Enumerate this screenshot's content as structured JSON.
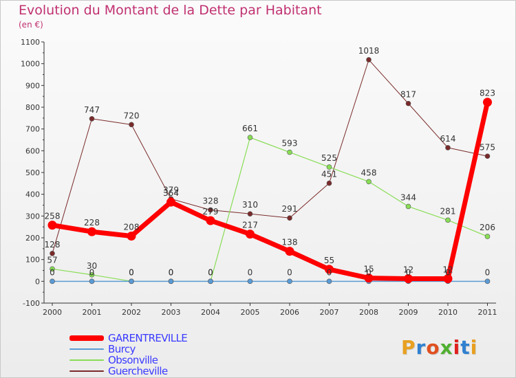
{
  "chart_data": {
    "type": "line",
    "title": "Evolution du Montant de la Dette par Habitant",
    "subtitle": "(en €)",
    "categories": [
      "2000",
      "2001",
      "2002",
      "2003",
      "2004",
      "2005",
      "2006",
      "2007",
      "2008",
      "2009",
      "2010",
      "2011"
    ],
    "ylim": [
      -100,
      1100
    ],
    "yticks": [
      -100,
      0,
      100,
      200,
      300,
      400,
      500,
      600,
      700,
      800,
      900,
      1000,
      1100
    ],
    "grid": false,
    "legend_position": "bottom-left",
    "series": [
      {
        "name": "GARENTREVILLE",
        "color": "#ff0000",
        "values": [
          258,
          228,
          208,
          364,
          279,
          217,
          138,
          55,
          15,
          12,
          12,
          823
        ],
        "labels": [
          "258",
          "228",
          "208",
          "364",
          "279",
          "217",
          "138",
          "55",
          "15",
          "12",
          "12",
          "823"
        ]
      },
      {
        "name": "Burcy",
        "color": "#5b9bd5",
        "values": [
          0,
          0,
          0,
          0,
          0,
          0,
          0,
          0,
          0,
          0,
          0,
          0
        ],
        "labels": [
          "0",
          "0",
          "0",
          "0",
          "0",
          "0",
          "0",
          "0",
          "0",
          "0",
          "0",
          "0"
        ]
      },
      {
        "name": "Obsonville",
        "color": "#88dd55",
        "values": [
          57,
          30,
          0,
          0,
          0,
          661,
          593,
          525,
          458,
          344,
          281,
          206
        ],
        "labels": [
          "57",
          "30",
          "0",
          "0",
          "0",
          "661",
          "593",
          "525",
          "458",
          "344",
          "281",
          "206"
        ]
      },
      {
        "name": "Guercheville",
        "color": "#7a2a2a",
        "values": [
          128,
          747,
          720,
          379,
          328,
          310,
          291,
          451,
          1018,
          817,
          614,
          575
        ],
        "labels": [
          "128",
          "747",
          "720",
          "379",
          "328",
          "310",
          "291",
          "451",
          "1018",
          "817",
          "614",
          "575"
        ]
      }
    ]
  },
  "logo": {
    "text": "Proxiti",
    "letter_colors": [
      "#e8a020",
      "#3080d0",
      "#e05020",
      "#50b030",
      "#e02020",
      "#3080d0",
      "#e8a020"
    ]
  }
}
